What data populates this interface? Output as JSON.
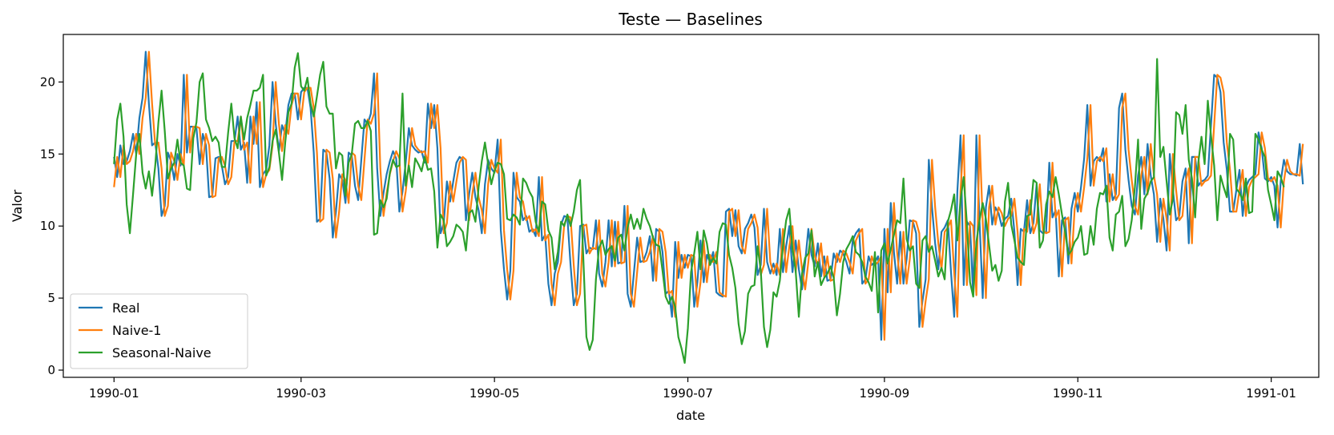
{
  "chart_data": {
    "type": "line",
    "title": "Teste — Baselines",
    "xlabel": "date",
    "ylabel": "Valor",
    "xlim": [
      "1989-12-16",
      "1991-01-16"
    ],
    "ylim": [
      -0.5,
      23.3
    ],
    "x_ticks": [
      "1990-01",
      "1990-03",
      "1990-05",
      "1990-07",
      "1990-09",
      "1990-11",
      "1991-01"
    ],
    "y_ticks": [
      0,
      5,
      10,
      15,
      20
    ],
    "grid": false,
    "legend": "lower-left",
    "x_start": "1990-01-01",
    "x_end": "1990-12-31",
    "series": [
      {
        "name": "Real",
        "color": "#1f77b4",
        "values": [
          14.8,
          13.4,
          15.6,
          14.3,
          14.5,
          15.2,
          16.4,
          15.0,
          17.5,
          18.9,
          22.1,
          18.5,
          15.6,
          15.8,
          14.0,
          10.7,
          11.4,
          15.1,
          14.5,
          13.2,
          15.0,
          14.2,
          20.5,
          15.1,
          16.9,
          16.9,
          16.8,
          14.3,
          16.4,
          15.6,
          12.0,
          12.1,
          14.7,
          14.8,
          14.2,
          12.9,
          13.4,
          15.9,
          15.9,
          17.6,
          15.3,
          15.8,
          13.0,
          17.6,
          15.7,
          18.6,
          12.7,
          13.6,
          13.9,
          15.6,
          20.0,
          17.1,
          15.2,
          17.0,
          16.4,
          18.4,
          19.2,
          19.2,
          17.4,
          19.3,
          19.6,
          19.6,
          18.2,
          15.1,
          10.3,
          10.5,
          15.3,
          15.1,
          13.3,
          9.2,
          11.0,
          13.6,
          13.2,
          11.6,
          15.1,
          14.9,
          12.8,
          11.8,
          14.6,
          17.4,
          17.1,
          17.8,
          20.6,
          14.0,
          10.7,
          12.3,
          13.6,
          14.5,
          15.2,
          14.7,
          11.0,
          12.4,
          14.4,
          16.8,
          15.6,
          15.3,
          15.1,
          15.2,
          14.4,
          18.5,
          16.8,
          18.4,
          15.4,
          9.5,
          10.2,
          13.1,
          11.7,
          13.1,
          14.4,
          14.8,
          14.6,
          10.4,
          12.2,
          13.7,
          12.0,
          11.1,
          9.5,
          12.9,
          14.6,
          14.0,
          13.7,
          16.0,
          9.7,
          7.0,
          4.9,
          6.9,
          13.7,
          12.0,
          11.7,
          10.4,
          10.7,
          9.6,
          9.8,
          9.3,
          13.4,
          9.0,
          9.4,
          6.0,
          4.5,
          6.7,
          7.5,
          10.1,
          10.7,
          10.6,
          7.3,
          4.5,
          5.3,
          10.0,
          10.1,
          8.1,
          8.5,
          8.4,
          10.4,
          6.7,
          5.8,
          7.5,
          10.4,
          7.2,
          10.3,
          7.4,
          7.5,
          11.4,
          5.3,
          4.4,
          6.8,
          9.2,
          7.5,
          7.6,
          8.2,
          9.3,
          6.2,
          9.8,
          9.6,
          8.2,
          5.3,
          5.5,
          3.7,
          8.9,
          6.4,
          8.0,
          7.1,
          8.0,
          7.9,
          4.4,
          6.1,
          9.0,
          6.1,
          8.0,
          7.5,
          8.2,
          5.4,
          5.2,
          5.1,
          11.0,
          11.2,
          9.3,
          11.1,
          8.6,
          8.1,
          9.8,
          10.2,
          10.8,
          9.9,
          6.6,
          7.3,
          11.2,
          7.5,
          6.7,
          7.4,
          6.6,
          9.8,
          6.8,
          8.6,
          10.0,
          6.8,
          9.0,
          7.0,
          5.6,
          7.5,
          9.8,
          8.0,
          7.2,
          8.8,
          6.5,
          7.9,
          6.2,
          6.3,
          8.1,
          7.5,
          8.3,
          8.1,
          7.5,
          6.7,
          9.0,
          9.5,
          9.8,
          6.0,
          6.3,
          7.9,
          7.3,
          7.5,
          7.9,
          2.1,
          9.8,
          5.4,
          11.6,
          8.2,
          6.0,
          9.6,
          6.0,
          7.7,
          10.4,
          10.3,
          9.5,
          3.0,
          4.8,
          6.3,
          14.6,
          11.3,
          8.8,
          7.0,
          9.6,
          9.9,
          10.4,
          6.8,
          3.7,
          12.4,
          16.3,
          5.9,
          10.3,
          10.0,
          5.2,
          16.3,
          10.3,
          5.0,
          11.3,
          12.8,
          10.1,
          11.3,
          10.9,
          10.0,
          10.5,
          10.7,
          11.9,
          9.6,
          5.9,
          9.8,
          9.6,
          11.8,
          9.5,
          10.2,
          12.9,
          9.7,
          9.5,
          9.6,
          14.4,
          10.6,
          11.1,
          6.5,
          10.4,
          10.6,
          7.4,
          11.2,
          12.3,
          11.0,
          12.7,
          14.7,
          18.4,
          12.8,
          14.5,
          14.8,
          14.5,
          15.4,
          11.7,
          13.6,
          11.8,
          12.2,
          18.2,
          19.2,
          15.3,
          13.2,
          11.4,
          10.8,
          13.5,
          14.8,
          12.2,
          15.7,
          13.5,
          12.2,
          8.9,
          11.9,
          10.5,
          8.3,
          15.0,
          12.5,
          10.4,
          10.7,
          13.1,
          14.0,
          8.8,
          14.8,
          14.8,
          12.8,
          13.1,
          13.2,
          13.5,
          17.0,
          20.5,
          20.3,
          19.3,
          15.8,
          13.9,
          11.0,
          11.0,
          12.5,
          13.9,
          10.7,
          12.7,
          13.2,
          13.4,
          13.6,
          16.5,
          15.4,
          13.3,
          13.1,
          13.4,
          12.8,
          9.9,
          13.1,
          14.6,
          13.8,
          13.6,
          13.6,
          13.5,
          15.7,
          12.9
        ]
      },
      {
        "name": "Naive-1",
        "color": "#ff7f0e",
        "values": [
          12.7,
          14.8,
          13.4,
          15.6,
          14.3,
          14.5,
          15.2,
          16.4,
          15.0,
          17.5,
          18.9,
          22.1,
          18.5,
          15.6,
          15.8,
          14.0,
          10.7,
          11.4,
          15.1,
          14.5,
          13.2,
          15.0,
          14.2,
          20.5,
          15.1,
          16.9,
          16.9,
          16.8,
          14.3,
          16.4,
          15.6,
          12.0,
          12.1,
          14.7,
          14.8,
          14.2,
          12.9,
          13.4,
          15.9,
          15.9,
          17.6,
          15.3,
          15.8,
          13.0,
          17.6,
          15.7,
          18.6,
          12.7,
          13.6,
          13.9,
          15.6,
          20.0,
          17.1,
          15.2,
          17.0,
          16.4,
          18.4,
          19.2,
          19.2,
          17.4,
          19.3,
          19.6,
          19.6,
          18.2,
          15.1,
          10.3,
          10.5,
          15.3,
          15.1,
          13.3,
          9.2,
          11.0,
          13.6,
          13.2,
          11.6,
          15.1,
          14.9,
          12.8,
          11.8,
          14.6,
          17.4,
          17.1,
          17.8,
          20.6,
          14.0,
          10.7,
          12.3,
          13.6,
          14.5,
          15.2,
          14.7,
          11.0,
          12.4,
          14.4,
          16.8,
          15.6,
          15.3,
          15.1,
          15.2,
          14.4,
          18.5,
          16.8,
          18.4,
          15.4,
          9.5,
          10.2,
          13.1,
          11.7,
          13.1,
          14.4,
          14.8,
          14.6,
          10.4,
          12.2,
          13.7,
          12.0,
          11.1,
          9.5,
          12.9,
          14.6,
          14.0,
          13.7,
          16.0,
          9.7,
          7.0,
          4.9,
          6.9,
          13.7,
          12.0,
          11.7,
          10.4,
          10.7,
          9.6,
          9.8,
          9.3,
          13.4,
          9.0,
          9.4,
          6.0,
          4.5,
          6.7,
          7.5,
          10.1,
          10.7,
          10.6,
          7.3,
          4.5,
          5.3,
          10.0,
          10.1,
          8.1,
          8.5,
          8.4,
          10.4,
          6.7,
          5.8,
          7.5,
          10.4,
          7.2,
          10.3,
          7.4,
          7.5,
          11.4,
          5.3,
          4.4,
          6.8,
          9.2,
          7.5,
          7.6,
          8.2,
          9.3,
          6.2,
          9.8,
          9.6,
          8.2,
          5.3,
          5.5,
          3.7,
          8.9,
          6.4,
          8.0,
          7.1,
          8.0,
          7.9,
          4.4,
          6.1,
          9.0,
          6.1,
          8.0,
          7.5,
          8.2,
          5.4,
          5.2,
          5.1,
          11.0,
          11.2,
          9.3,
          11.1,
          8.6,
          8.1,
          9.8,
          10.2,
          10.8,
          9.9,
          6.6,
          7.3,
          11.2,
          7.5,
          6.7,
          7.4,
          6.6,
          9.8,
          6.8,
          8.6,
          10.0,
          6.8,
          9.0,
          7.0,
          5.6,
          7.5,
          9.8,
          8.0,
          7.2,
          8.8,
          6.5,
          7.9,
          6.2,
          6.3,
          8.1,
          7.5,
          8.3,
          8.1,
          7.5,
          6.7,
          9.0,
          9.5,
          9.8,
          6.0,
          6.3,
          7.9,
          7.3,
          7.5,
          7.9,
          2.1,
          9.8,
          5.4,
          11.6,
          8.2,
          6.0,
          9.6,
          6.0,
          7.7,
          10.4,
          10.3,
          9.5,
          3.0,
          4.8,
          6.3,
          14.6,
          11.3,
          8.8,
          7.0,
          9.6,
          9.9,
          10.4,
          6.8,
          3.7,
          12.4,
          16.3,
          5.9,
          10.3,
          10.0,
          5.2,
          16.3,
          10.3,
          5.0,
          11.3,
          12.8,
          10.1,
          11.3,
          10.9,
          10.0,
          10.5,
          10.7,
          11.9,
          9.6,
          5.9,
          9.8,
          9.6,
          11.8,
          9.5,
          10.2,
          12.9,
          9.7,
          9.5,
          9.6,
          14.4,
          10.6,
          11.1,
          6.5,
          10.4,
          10.6,
          7.4,
          11.2,
          12.3,
          11.0,
          12.7,
          14.7,
          18.4,
          12.8,
          14.5,
          14.8,
          14.5,
          15.4,
          11.7,
          13.6,
          11.8,
          12.2,
          18.2,
          19.2,
          15.3,
          13.2,
          11.4,
          10.8,
          13.5,
          14.8,
          12.2,
          15.7,
          13.5,
          12.2,
          8.9,
          11.9,
          10.5,
          8.3,
          15.0,
          12.5,
          10.4,
          10.7,
          13.1,
          14.0,
          8.8,
          14.8,
          14.8,
          12.8,
          13.1,
          13.2,
          13.5,
          17.0,
          20.5,
          20.3,
          19.3,
          15.8,
          13.9,
          11.0,
          11.0,
          12.5,
          13.9,
          10.7,
          12.7,
          13.2,
          13.4,
          13.6,
          16.5,
          15.4,
          13.3,
          13.1,
          13.4,
          12.8,
          9.9,
          13.1,
          14.6,
          13.8,
          13.6,
          13.6,
          13.5,
          15.7
        ]
      },
      {
        "name": "Seasonal-Naive",
        "color": "#2ca02c",
        "values": [
          14.3,
          17.4,
          18.5,
          16.2,
          11.5,
          9.5,
          12.2,
          15.0,
          16.4,
          13.7,
          12.6,
          13.8,
          12.1,
          14.2,
          17.2,
          19.4,
          16.6,
          13.3,
          14.0,
          14.4,
          16.0,
          14.4,
          14.2,
          12.6,
          12.5,
          16.1,
          17.2,
          20.0,
          20.6,
          17.4,
          16.8,
          15.9,
          16.2,
          15.8,
          14.1,
          14.1,
          16.5,
          18.5,
          16.1,
          15.4,
          17.6,
          16.0,
          17.5,
          18.4,
          19.4,
          19.4,
          19.6,
          20.5,
          13.5,
          14.1,
          15.9,
          16.7,
          15.1,
          13.2,
          15.8,
          17.9,
          18.5,
          21.0,
          22.0,
          19.7,
          19.4,
          20.3,
          18.5,
          17.6,
          19.0,
          20.5,
          21.4,
          18.3,
          17.8,
          17.8,
          14.0,
          15.1,
          14.9,
          12.1,
          14.4,
          15.0,
          17.1,
          17.3,
          16.8,
          16.8,
          17.3,
          16.6,
          9.4,
          9.5,
          11.8,
          11.3,
          11.9,
          13.7,
          14.6,
          14.1,
          14.2,
          19.2,
          12.8,
          14.2,
          12.7,
          14.7,
          14.3,
          13.8,
          14.8,
          13.9,
          14.0,
          12.4,
          8.5,
          10.8,
          10.4,
          8.6,
          8.9,
          9.3,
          10.1,
          9.9,
          9.6,
          8.3,
          10.9,
          11.1,
          10.3,
          12.7,
          14.5,
          15.8,
          14.3,
          12.9,
          13.8,
          14.4,
          14.3,
          13.6,
          10.5,
          10.4,
          10.8,
          10.6,
          10.1,
          13.3,
          13.0,
          12.4,
          12.0,
          10.3,
          9.6,
          11.7,
          11.5,
          9.7,
          9.2,
          7.0,
          8.2,
          10.3,
          10.0,
          10.8,
          10.0,
          11.0,
          12.5,
          13.2,
          7.9,
          2.3,
          1.4,
          2.1,
          6.3,
          8.5,
          9.0,
          8.0,
          8.4,
          8.6,
          7.6,
          9.2,
          9.4,
          8.3,
          9.9,
          10.8,
          9.8,
          10.5,
          9.8,
          11.2,
          10.5,
          10.0,
          9.2,
          8.7,
          8.6,
          6.9,
          5.1,
          4.6,
          5.1,
          4.4,
          2.3,
          1.5,
          0.5,
          2.9,
          6.8,
          8.1,
          9.6,
          7.0,
          9.7,
          8.8,
          7.3,
          7.8,
          7.4,
          9.6,
          10.2,
          10.1,
          8.0,
          7.1,
          5.7,
          3.2,
          1.8,
          2.7,
          5.3,
          5.8,
          5.9,
          8.6,
          6.9,
          3.0,
          1.6,
          2.8,
          5.4,
          5.1,
          6.2,
          8.6,
          10.4,
          11.2,
          8.4,
          6.9,
          3.7,
          6.7,
          7.8,
          8.1,
          9.7,
          6.5,
          7.5,
          5.9,
          6.4,
          6.7,
          7.2,
          6.4,
          3.8,
          5.3,
          7.5,
          8.4,
          8.8,
          9.3,
          8.2,
          8.0,
          7.5,
          6.5,
          6.1,
          5.5,
          8.2,
          4.0,
          8.3,
          8.8,
          7.4,
          8.4,
          9.4,
          10.4,
          10.2,
          13.3,
          9.1,
          8.3,
          8.6,
          6.0,
          5.7,
          9.0,
          9.3,
          8.2,
          8.6,
          7.6,
          6.5,
          7.1,
          6.3,
          10.3,
          11.1,
          12.2,
          9.0,
          11.8,
          13.4,
          10.2,
          6.1,
          5.1,
          8.9,
          10.4,
          11.6,
          10.5,
          8.7,
          6.9,
          7.3,
          6.2,
          6.9,
          11.7,
          13.0,
          10.1,
          9.0,
          7.8,
          7.5,
          7.3,
          10.7,
          10.8,
          13.2,
          13.0,
          8.5,
          9.0,
          11.5,
          12.4,
          12.0,
          13.4,
          12.2,
          10.8,
          9.6,
          8.0,
          8.3,
          8.9,
          9.2,
          10.0,
          8.0,
          8.1,
          10.0,
          8.7,
          11.2,
          12.3,
          12.2,
          12.8,
          9.2,
          8.3,
          10.8,
          11.0,
          12.1,
          8.6,
          9.1,
          10.4,
          12.7,
          16.0,
          9.8,
          11.9,
          12.3,
          13.1,
          13.4,
          21.6,
          14.8,
          15.5,
          13.1,
          10.8,
          11.9,
          17.9,
          17.7,
          16.4,
          18.4,
          14.6,
          13.3,
          10.6,
          14.4,
          16.2,
          14.3,
          18.7,
          16.3,
          14.2,
          10.4,
          13.5,
          12.7,
          12.0,
          16.4,
          16.0,
          12.6,
          12.3,
          11.8,
          13.3,
          10.9,
          11.0,
          16.4,
          16.0,
          15.3,
          14.8,
          12.5,
          11.5,
          10.4,
          13.8,
          13.4,
          12.7
        ]
      }
    ]
  }
}
